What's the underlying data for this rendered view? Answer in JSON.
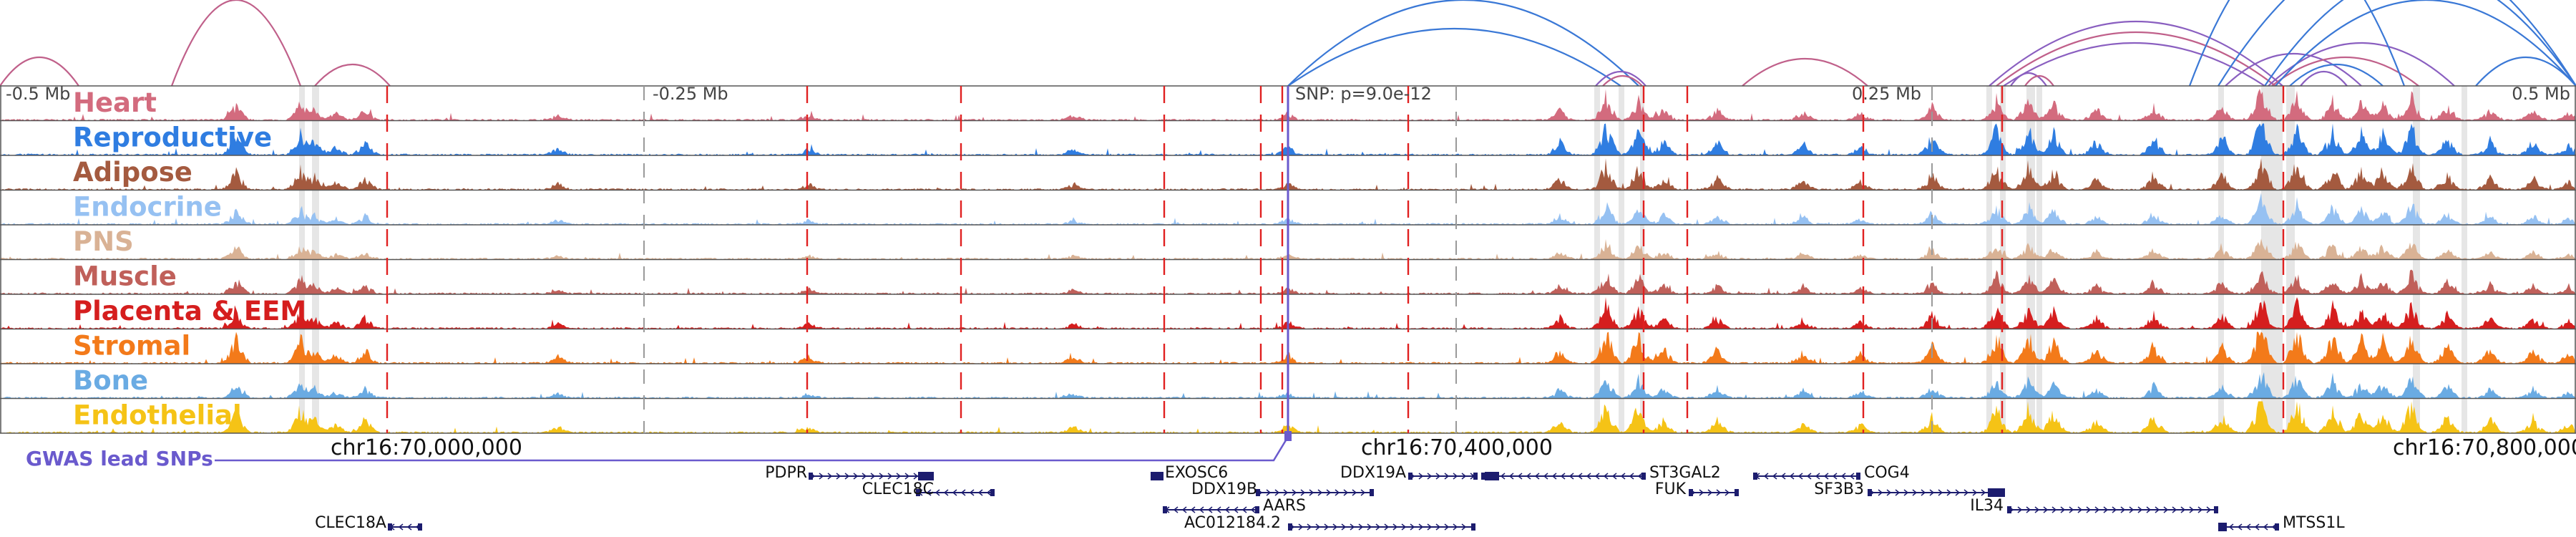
{
  "tracks": [
    {
      "name": "Heart",
      "color": "#d36b7e"
    },
    {
      "name": "Reproductive",
      "color": "#2f7de1"
    },
    {
      "name": "Adipose",
      "color": "#a45a3f"
    },
    {
      "name": "Endocrine",
      "color": "#96c1f2"
    },
    {
      "name": "PNS",
      "color": "#d9b295"
    },
    {
      "name": "Muscle",
      "color": "#c0605a"
    },
    {
      "name": "Placenta & EEM",
      "color": "#d51e1e"
    },
    {
      "name": "Stromal",
      "color": "#f37a1a"
    },
    {
      "name": "Bone",
      "color": "#6aabe3"
    },
    {
      "name": "Endothelial",
      "color": "#f5c316"
    }
  ],
  "scale_labels": [
    "-0.5 Mb",
    "-0.25 Mb",
    "SNP: p=9.0e-12",
    "0.25 Mb",
    "0.5 Mb"
  ],
  "coordinate_labels": [
    "chr16:70,000,000",
    "chr16:70,400,000",
    "chr16:70,800,000"
  ],
  "gwas_label": "GWAS lead SNPs",
  "genes": [
    "PDPR",
    "CLEC18C",
    "CLEC18A",
    "EXOSC6",
    "DDX19B",
    "AARS",
    "AC012184.2",
    "DDX19A",
    "ST3GAL2",
    "FUK",
    "COG4",
    "SF3B3",
    "IL34",
    "MTSS1L"
  ],
  "colors": {
    "gwas": "#6a5acd",
    "gene": "#1c1c6e",
    "highlight_line": "#e02020",
    "arc_blue": "#3a78d6",
    "arc_pink": "#c0608a",
    "arc_purple": "#8a5fc0"
  }
}
